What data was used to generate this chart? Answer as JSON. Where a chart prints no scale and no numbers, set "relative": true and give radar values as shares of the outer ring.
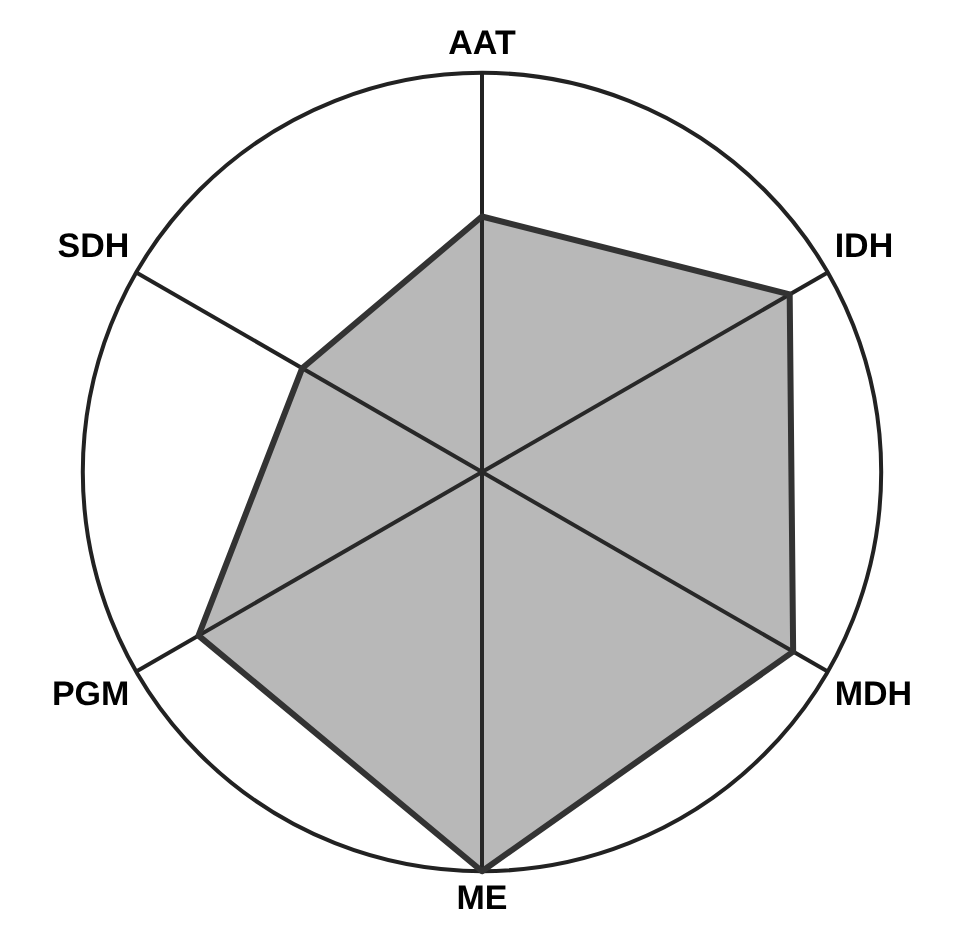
{
  "chart_data": {
    "type": "radar",
    "relative": true,
    "grid": true,
    "legend": false,
    "marker": "none",
    "categories": [
      "AAT",
      "IDH",
      "MDH",
      "ME",
      "PGM",
      "SDH"
    ],
    "series": [
      {
        "color": "#333333",
        "values": [
          0.64,
          0.89,
          0.9,
          1.0,
          0.82,
          0.52
        ]
      }
    ]
  }
}
